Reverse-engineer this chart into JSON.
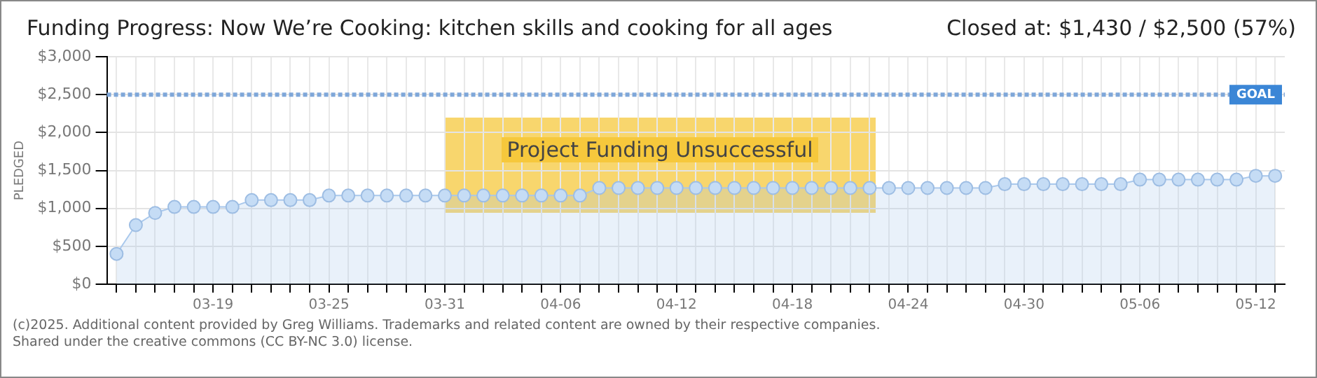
{
  "chart_data": {
    "type": "area",
    "title": "Funding Progress: Now We’re Cooking: kitchen skills and cooking for all ages",
    "subtitle": "Closed at: $1,430 / $2,500 (57%)",
    "ylabel": "PLEDGED",
    "categories": [
      null,
      null,
      null,
      null,
      null,
      "03-19",
      null,
      null,
      null,
      null,
      null,
      "03-25",
      null,
      null,
      null,
      null,
      null,
      "03-31",
      null,
      null,
      null,
      null,
      null,
      "04-06",
      null,
      null,
      null,
      null,
      null,
      "04-12",
      null,
      null,
      null,
      null,
      null,
      "04-18",
      null,
      null,
      null,
      null,
      null,
      "04-24",
      null,
      null,
      null,
      null,
      null,
      "04-30",
      null,
      null,
      null,
      null,
      null,
      "05-06",
      null,
      null,
      null,
      null,
      null,
      "05-12",
      null
    ],
    "series": [
      {
        "color": "#a9c8ec",
        "values": [
          400,
          780,
          940,
          1020,
          1020,
          1020,
          1020,
          1110,
          1110,
          1110,
          1110,
          1170,
          1170,
          1170,
          1170,
          1170,
          1170,
          1170,
          1170,
          1170,
          1170,
          1170,
          1170,
          1170,
          1170,
          1270,
          1270,
          1270,
          1270,
          1270,
          1270,
          1270,
          1270,
          1270,
          1270,
          1270,
          1270,
          1270,
          1270,
          1270,
          1270,
          1270,
          1270,
          1270,
          1270,
          1270,
          1320,
          1320,
          1320,
          1320,
          1320,
          1320,
          1320,
          1380,
          1380,
          1380,
          1380,
          1380,
          1380,
          1430,
          1430
        ]
      }
    ],
    "ylim": [
      0,
      3000
    ],
    "yticks": [
      {
        "value": 0,
        "label": "$0"
      },
      {
        "value": 500,
        "label": "$500"
      },
      {
        "value": 1000,
        "label": "$1,000"
      },
      {
        "value": 1500,
        "label": "$1,500"
      },
      {
        "value": 2000,
        "label": "$2,000"
      },
      {
        "value": 2500,
        "label": "$2,500"
      },
      {
        "value": 3000,
        "label": "$3,000"
      }
    ],
    "ref_lines": [
      {
        "axis": "y",
        "value": 2500,
        "label": "GOAL",
        "color": "#7fa7d9",
        "line_style": "dotted"
      }
    ],
    "annotations": [
      "Project Funding Unsuccessful",
      "(c)2025. Additional content provided by Greg Williams. Trademarks and related content are owned by their respective companies.",
      "Shared under the creative commons (CC BY-NC 3.0) license."
    ],
    "grid": true,
    "legend": false,
    "marker": "circle",
    "line_style": "solid"
  }
}
